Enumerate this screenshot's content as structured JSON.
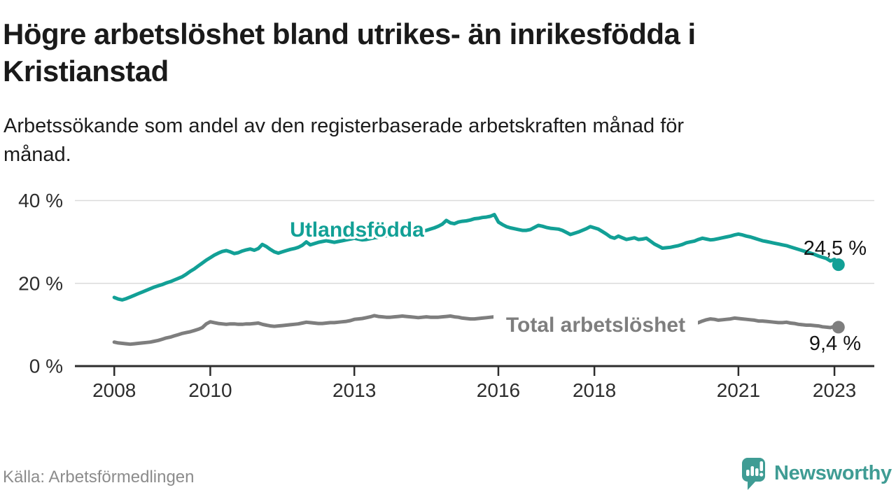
{
  "header": {
    "title_lines": [
      "Högre arbetslöshet bland utrikes- än inrikesfödda i",
      "Kristianstad"
    ],
    "subtitle_lines": [
      "Arbetssökande som andel av den registerbaserade arbetskraften månad för",
      "månad."
    ]
  },
  "footer": {
    "source": "Källa: Arbetsförmedlingen",
    "brand": "Newsworthy"
  },
  "colors": {
    "accent_teal": "#12a096",
    "line_gray": "#7e7e7e",
    "brand_teal": "#3f9c94",
    "axis_dark": "#2d2d2d",
    "grid_gray": "#dbdbdb"
  },
  "chart_data": {
    "type": "line",
    "title": "Högre arbetslöshet bland utrikes- än inrikesfödda i Kristianstad",
    "subtitle": "Arbetssökande som andel av den registerbaserade arbetskraften månad för månad.",
    "unit": "%",
    "xlim": [
      2007.18,
      2023.83
    ],
    "ylim": [
      0,
      40
    ],
    "grid": true,
    "legend_position": "inline-labels",
    "y_ticks": [
      {
        "value": 0,
        "label": "0 %"
      },
      {
        "value": 20,
        "label": "20 %"
      },
      {
        "value": 40,
        "label": "40 %"
      }
    ],
    "grid_values": [
      20,
      40
    ],
    "x_ticks": [
      {
        "value": 2008,
        "label": "2008"
      },
      {
        "value": 2010,
        "label": "2010"
      },
      {
        "value": 2013,
        "label": "2013"
      },
      {
        "value": 2016,
        "label": "2016"
      },
      {
        "value": 2018,
        "label": "2018"
      },
      {
        "value": 2021,
        "label": "2021"
      },
      {
        "value": 2023,
        "label": "2023"
      }
    ],
    "series": [
      {
        "name": "Utlandsfödda",
        "color": "#12a096",
        "end_label": "24,5 %",
        "end_value": 24.5,
        "x_start": 2008.0,
        "step_months": 1,
        "values": [
          16.6,
          16.2,
          16.0,
          16.3,
          16.7,
          17.1,
          17.5,
          17.9,
          18.3,
          18.7,
          19.1,
          19.4,
          19.7,
          20.1,
          20.4,
          20.8,
          21.2,
          21.6,
          22.2,
          22.9,
          23.5,
          24.2,
          24.9,
          25.6,
          26.2,
          26.8,
          27.3,
          27.7,
          27.9,
          27.6,
          27.2,
          27.4,
          27.8,
          28.1,
          28.3,
          28.0,
          28.4,
          29.4,
          28.9,
          28.2,
          27.6,
          27.3,
          27.6,
          27.9,
          28.2,
          28.4,
          28.7,
          29.2,
          30.0,
          29.3,
          29.6,
          29.9,
          30.1,
          30.3,
          30.1,
          29.9,
          30.1,
          30.3,
          30.5,
          30.7,
          30.9,
          30.7,
          30.5,
          30.6,
          30.8,
          31.0,
          31.1,
          31.3,
          31.5,
          31.7,
          31.9,
          32.1,
          32.3,
          32.1,
          32.0,
          32.2,
          32.4,
          32.6,
          32.8,
          33.1,
          33.4,
          33.8,
          34.3,
          35.2,
          34.6,
          34.4,
          34.8,
          35.0,
          35.1,
          35.3,
          35.6,
          35.7,
          35.9,
          36.0,
          36.2,
          36.6,
          34.8,
          34.2,
          33.7,
          33.4,
          33.2,
          33.0,
          32.8,
          32.8,
          33.0,
          33.5,
          34.0,
          33.8,
          33.5,
          33.3,
          33.2,
          33.1,
          32.8,
          32.3,
          31.8,
          32.1,
          32.4,
          32.8,
          33.2,
          33.7,
          33.4,
          33.1,
          32.5,
          31.9,
          31.2,
          30.9,
          31.4,
          31.0,
          30.6,
          30.8,
          31.0,
          30.6,
          30.7,
          30.9,
          30.2,
          29.5,
          29.0,
          28.5,
          28.6,
          28.7,
          28.9,
          29.1,
          29.4,
          29.8,
          30.0,
          30.2,
          30.6,
          30.9,
          30.7,
          30.5,
          30.6,
          30.8,
          31.0,
          31.2,
          31.4,
          31.7,
          31.9,
          31.7,
          31.4,
          31.2,
          30.9,
          30.6,
          30.3,
          30.1,
          29.9,
          29.7,
          29.5,
          29.3,
          29.1,
          28.8,
          28.5,
          28.2,
          27.9,
          27.6,
          27.3,
          27.0,
          26.6,
          26.3,
          26.0,
          25.4,
          25.8,
          24.5
        ]
      },
      {
        "name": "Total arbetslöshet",
        "color": "#7e7e7e",
        "end_label": "9,4 %",
        "end_value": 9.4,
        "x_start": 2008.0,
        "step_months": 1,
        "values": [
          5.8,
          5.6,
          5.5,
          5.4,
          5.3,
          5.4,
          5.5,
          5.6,
          5.7,
          5.8,
          6.0,
          6.2,
          6.5,
          6.8,
          7.0,
          7.3,
          7.6,
          7.9,
          8.1,
          8.3,
          8.6,
          8.9,
          9.3,
          10.2,
          10.7,
          10.5,
          10.3,
          10.2,
          10.1,
          10.2,
          10.2,
          10.1,
          10.1,
          10.2,
          10.2,
          10.3,
          10.4,
          10.1,
          9.9,
          9.7,
          9.6,
          9.7,
          9.8,
          9.9,
          10.0,
          10.1,
          10.2,
          10.4,
          10.6,
          10.5,
          10.4,
          10.3,
          10.3,
          10.4,
          10.5,
          10.5,
          10.6,
          10.7,
          10.8,
          11.0,
          11.3,
          11.4,
          11.5,
          11.7,
          11.9,
          12.2,
          12.0,
          11.9,
          11.8,
          11.8,
          11.9,
          12.0,
          12.1,
          12.0,
          11.9,
          11.8,
          11.7,
          11.8,
          11.9,
          11.8,
          11.8,
          11.8,
          11.9,
          12.0,
          12.1,
          11.9,
          11.8,
          11.6,
          11.5,
          11.4,
          11.4,
          11.5,
          11.6,
          11.7,
          11.8,
          11.9,
          12.0,
          11.8,
          11.7,
          11.6,
          11.5,
          11.4,
          11.4,
          11.3,
          11.3,
          11.3,
          11.3,
          11.3,
          11.4,
          11.2,
          11.1,
          10.9,
          10.8,
          10.7,
          10.7,
          10.6,
          10.6,
          10.6,
          10.6,
          10.7,
          10.7,
          10.5,
          10.4,
          10.3,
          10.2,
          10.1,
          10.1,
          10.0,
          10.0,
          10.0,
          10.0,
          10.0,
          10.1,
          9.9,
          9.8,
          9.7,
          9.6,
          9.5,
          9.5,
          9.6,
          9.6,
          9.7,
          9.8,
          9.9,
          10.1,
          10.2,
          10.5,
          10.9,
          11.2,
          11.4,
          11.3,
          11.1,
          11.2,
          11.3,
          11.4,
          11.6,
          11.5,
          11.4,
          11.3,
          11.2,
          11.1,
          10.9,
          10.9,
          10.8,
          10.7,
          10.6,
          10.5,
          10.5,
          10.6,
          10.4,
          10.3,
          10.1,
          10.0,
          9.9,
          9.9,
          9.8,
          9.7,
          9.5,
          9.4,
          9.3,
          9.6,
          9.4
        ]
      }
    ]
  }
}
